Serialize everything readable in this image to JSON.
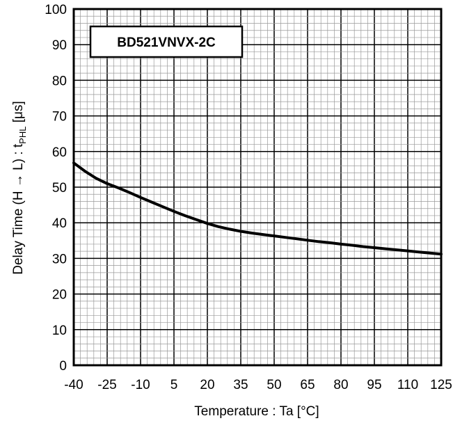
{
  "chart_data": {
    "type": "line",
    "legend_label": "BD521VNVX-2C",
    "xlabel": "Temperature : Ta [°C]",
    "ylabel_main": "Delay Time (H → L) : t",
    "ylabel_sub": "PHL",
    "ylabel_unit": " [μs]",
    "xlim": [
      -40,
      125
    ],
    "ylim": [
      0,
      100
    ],
    "x_ticks": [
      -40,
      -25,
      -10,
      5,
      20,
      35,
      50,
      65,
      80,
      95,
      110,
      125
    ],
    "y_ticks": [
      0,
      10,
      20,
      30,
      40,
      50,
      60,
      70,
      80,
      90,
      100
    ],
    "grid": true,
    "legend_position": "top-left",
    "series": [
      {
        "x": [
          -40,
          -35,
          -30,
          -25,
          -20,
          -15,
          -10,
          -5,
          0,
          5,
          10,
          15,
          20,
          25,
          30,
          35,
          40,
          45,
          50,
          55,
          60,
          65,
          70,
          75,
          80,
          85,
          90,
          95,
          100,
          105,
          110,
          115,
          120,
          125
        ],
        "y": [
          56.8,
          54.5,
          52.5,
          51.0,
          49.8,
          48.5,
          47.1,
          45.8,
          44.5,
          43.2,
          42.0,
          40.9,
          39.8,
          38.9,
          38.2,
          37.6,
          37.1,
          36.7,
          36.3,
          35.9,
          35.5,
          35.1,
          34.7,
          34.4,
          34.0,
          33.7,
          33.3,
          33.0,
          32.7,
          32.4,
          32.1,
          31.8,
          31.5,
          31.2
        ]
      }
    ],
    "colors": {
      "line": "#000000",
      "grid": "#999999",
      "frame": "#000000"
    }
  }
}
